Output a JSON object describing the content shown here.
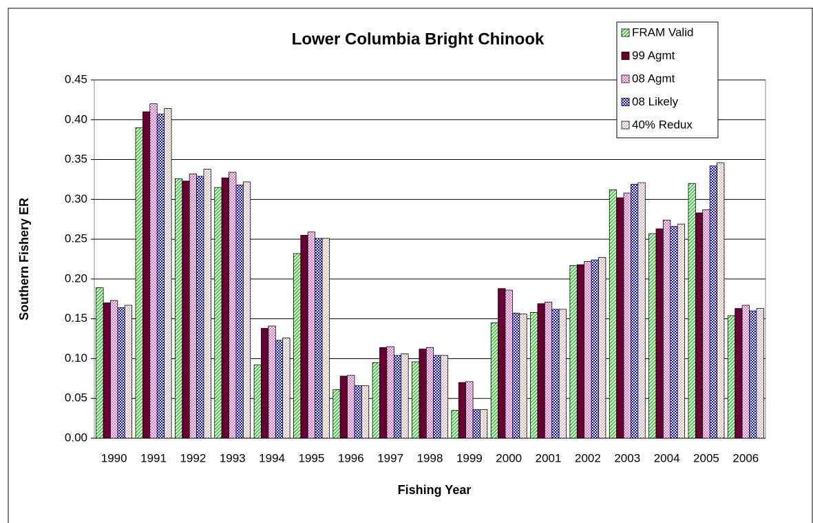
{
  "chart_data": {
    "type": "bar",
    "title": "Lower Columbia Bright Chinook",
    "x_label": "Fishing Year",
    "y_label": "Southern Fishery ER",
    "categories": [
      "1990",
      "1991",
      "1992",
      "1993",
      "1994",
      "1995",
      "1996",
      "1997",
      "1998",
      "1999",
      "2000",
      "2001",
      "2002",
      "2003",
      "2004",
      "2005",
      "2006"
    ],
    "series": [
      {
        "name": "FRAM Valid",
        "color": "#33cc33",
        "pattern": "stripes",
        "values": [
          0.189,
          0.39,
          0.326,
          0.315,
          0.092,
          0.232,
          0.061,
          0.095,
          0.096,
          0.035,
          0.145,
          0.158,
          0.217,
          0.312,
          0.257,
          0.32,
          0.154
        ]
      },
      {
        "name": "99 Agmt",
        "color": "#660033",
        "pattern": "solid",
        "values": [
          0.17,
          0.41,
          0.323,
          0.327,
          0.138,
          0.255,
          0.078,
          0.114,
          0.112,
          0.07,
          0.188,
          0.169,
          0.218,
          0.302,
          0.263,
          0.283,
          0.163
        ]
      },
      {
        "name": "08  Agmt",
        "color": "#ff66cc",
        "pattern": "checker",
        "values": [
          0.173,
          0.42,
          0.332,
          0.334,
          0.141,
          0.259,
          0.079,
          0.115,
          0.114,
          0.071,
          0.186,
          0.171,
          0.222,
          0.308,
          0.274,
          0.287,
          0.167
        ]
      },
      {
        "name": "08 Likely",
        "color": "#0000ff",
        "pattern": "checker",
        "values": [
          0.164,
          0.407,
          0.329,
          0.318,
          0.123,
          0.251,
          0.066,
          0.104,
          0.104,
          0.036,
          0.157,
          0.162,
          0.224,
          0.319,
          0.266,
          0.342,
          0.16
        ]
      },
      {
        "name": "40% Redux",
        "color": "#cc8888",
        "pattern": "dots",
        "values": [
          0.167,
          0.414,
          0.338,
          0.322,
          0.126,
          0.251,
          0.066,
          0.106,
          0.104,
          0.036,
          0.156,
          0.162,
          0.227,
          0.321,
          0.269,
          0.346,
          0.163
        ]
      }
    ],
    "ylim": [
      0,
      0.45
    ],
    "yticks": [
      {
        "value": 0,
        "label": "0.00"
      },
      {
        "value": 0.05,
        "label": "0.05"
      },
      {
        "value": 0.1,
        "label": "0.10"
      },
      {
        "value": 0.15,
        "label": "0.15"
      },
      {
        "value": 0.2,
        "label": "0.20"
      },
      {
        "value": 0.25,
        "label": "0.25"
      },
      {
        "value": 0.3,
        "label": "0.30"
      },
      {
        "value": 0.35,
        "label": "0.35"
      },
      {
        "value": 0.4,
        "label": "0.40"
      },
      {
        "value": 0.45,
        "label": "0.45"
      }
    ],
    "grid": true,
    "legend": "upper right"
  }
}
